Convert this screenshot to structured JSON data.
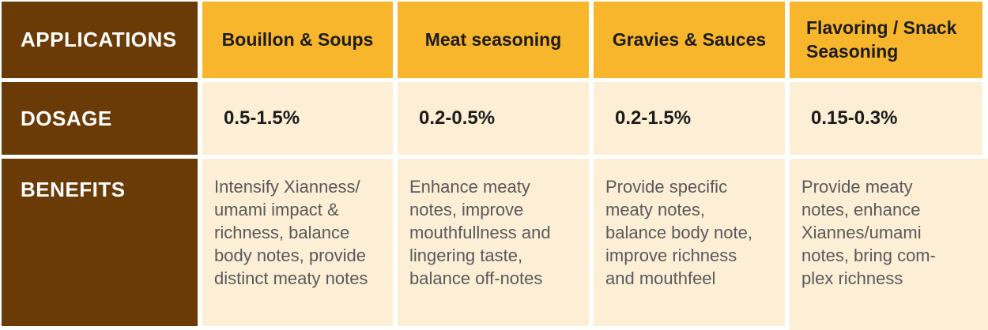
{
  "theme": {
    "brown": "#6B3B07",
    "orange": "#F8B62D",
    "cream": "#FCEFD5",
    "text_black": "#1C1C1C",
    "text_gray": "#59595B",
    "divider_white": "#FFFFFF"
  },
  "table": {
    "row_headers": {
      "applications": "APPLICATIONS",
      "dosage": "DOSAGE",
      "benefits": "BENEFITS"
    },
    "columns": [
      {
        "application": "Bouillon & Soups",
        "dosage": "0.5-1.5%",
        "benefits": "Intensify Xianness/\numami impact &\nrichness, balance\nbody notes, provide\ndistinct meaty notes"
      },
      {
        "application": "Meat seasoning",
        "dosage": "0.2-0.5%",
        "benefits": "Enhance meaty\nnotes, improve\nmouthfullness and\nlingering taste,\nbalance off-notes"
      },
      {
        "application": "Gravies & Sauces",
        "dosage": "0.2-1.5%",
        "benefits": "Provide specific\nmeaty notes,\nbalance body note,\nimprove richness\nand mouthfeel"
      },
      {
        "application": "Flavoring /\nSnack Seasoning",
        "dosage": "0.15-0.3%",
        "benefits": "Provide meaty\nnotes, enhance\nXiannes/umami\nnotes, bring com-\nplex richness"
      }
    ]
  }
}
